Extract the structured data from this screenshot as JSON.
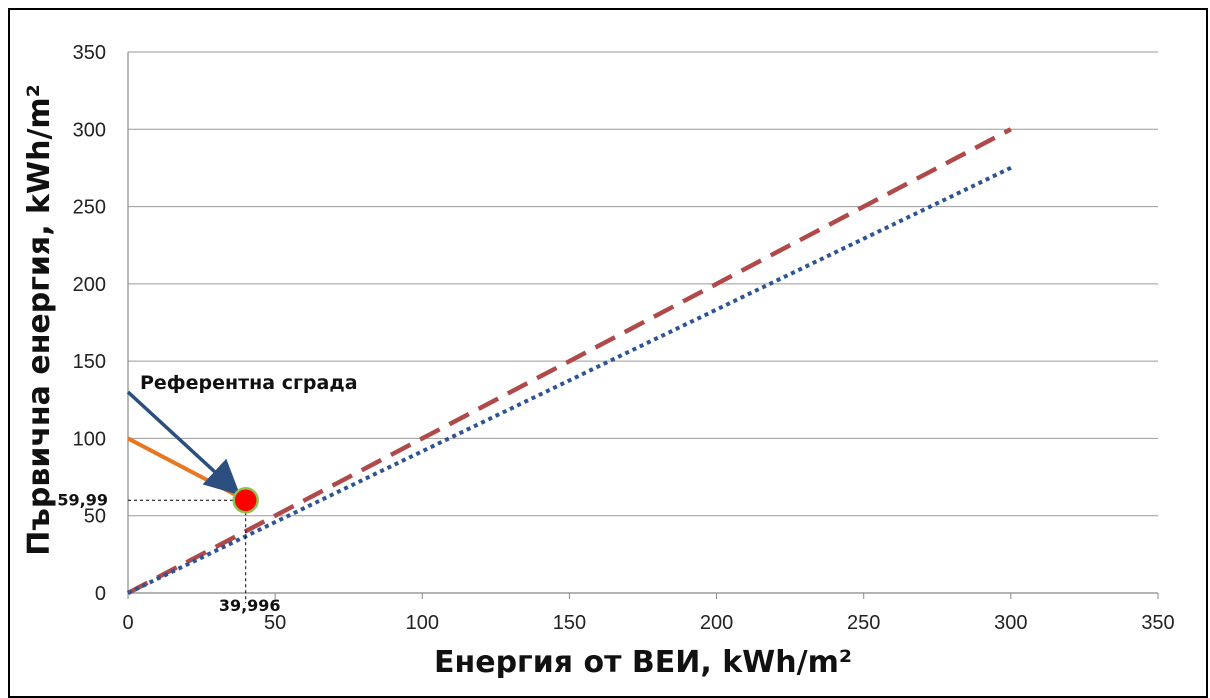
{
  "chart_data": {
    "type": "line",
    "xlabel": "Енергия от ВЕИ, kWh/m²",
    "ylabel": "Първична енергия, kWh/m²",
    "xlim": [
      0,
      350
    ],
    "ylim": [
      0,
      350
    ],
    "x_ticks": [
      "0",
      "50",
      "100",
      "150",
      "200",
      "250",
      "300",
      "350"
    ],
    "y_ticks": [
      "0",
      "50",
      "100",
      "150",
      "200",
      "250",
      "300",
      "350"
    ],
    "grid": "horizontal",
    "series": [
      {
        "style": "dashed",
        "color": "#b04a4a",
        "points": [
          [
            0,
            0
          ],
          [
            300,
            300
          ]
        ]
      },
      {
        "style": "dotted",
        "color": "#2e5591",
        "points": [
          [
            0,
            0
          ],
          [
            301,
            276
          ]
        ]
      },
      {
        "style": "solid",
        "color": "#e87722",
        "points": [
          [
            0,
            100
          ],
          [
            39.996,
            59.99
          ]
        ]
      }
    ],
    "reference_point": {
      "x": 39.996,
      "y": 59.99,
      "fill": "#ff0000",
      "stroke": "#92c050"
    },
    "reference_label": "Референтна сграда",
    "reference_x_label": "39,996",
    "reference_y_label": "59,99",
    "arrow": {
      "from": [
        0,
        130
      ],
      "to": [
        39.996,
        59.99
      ],
      "color": "#2b4f7e"
    }
  }
}
